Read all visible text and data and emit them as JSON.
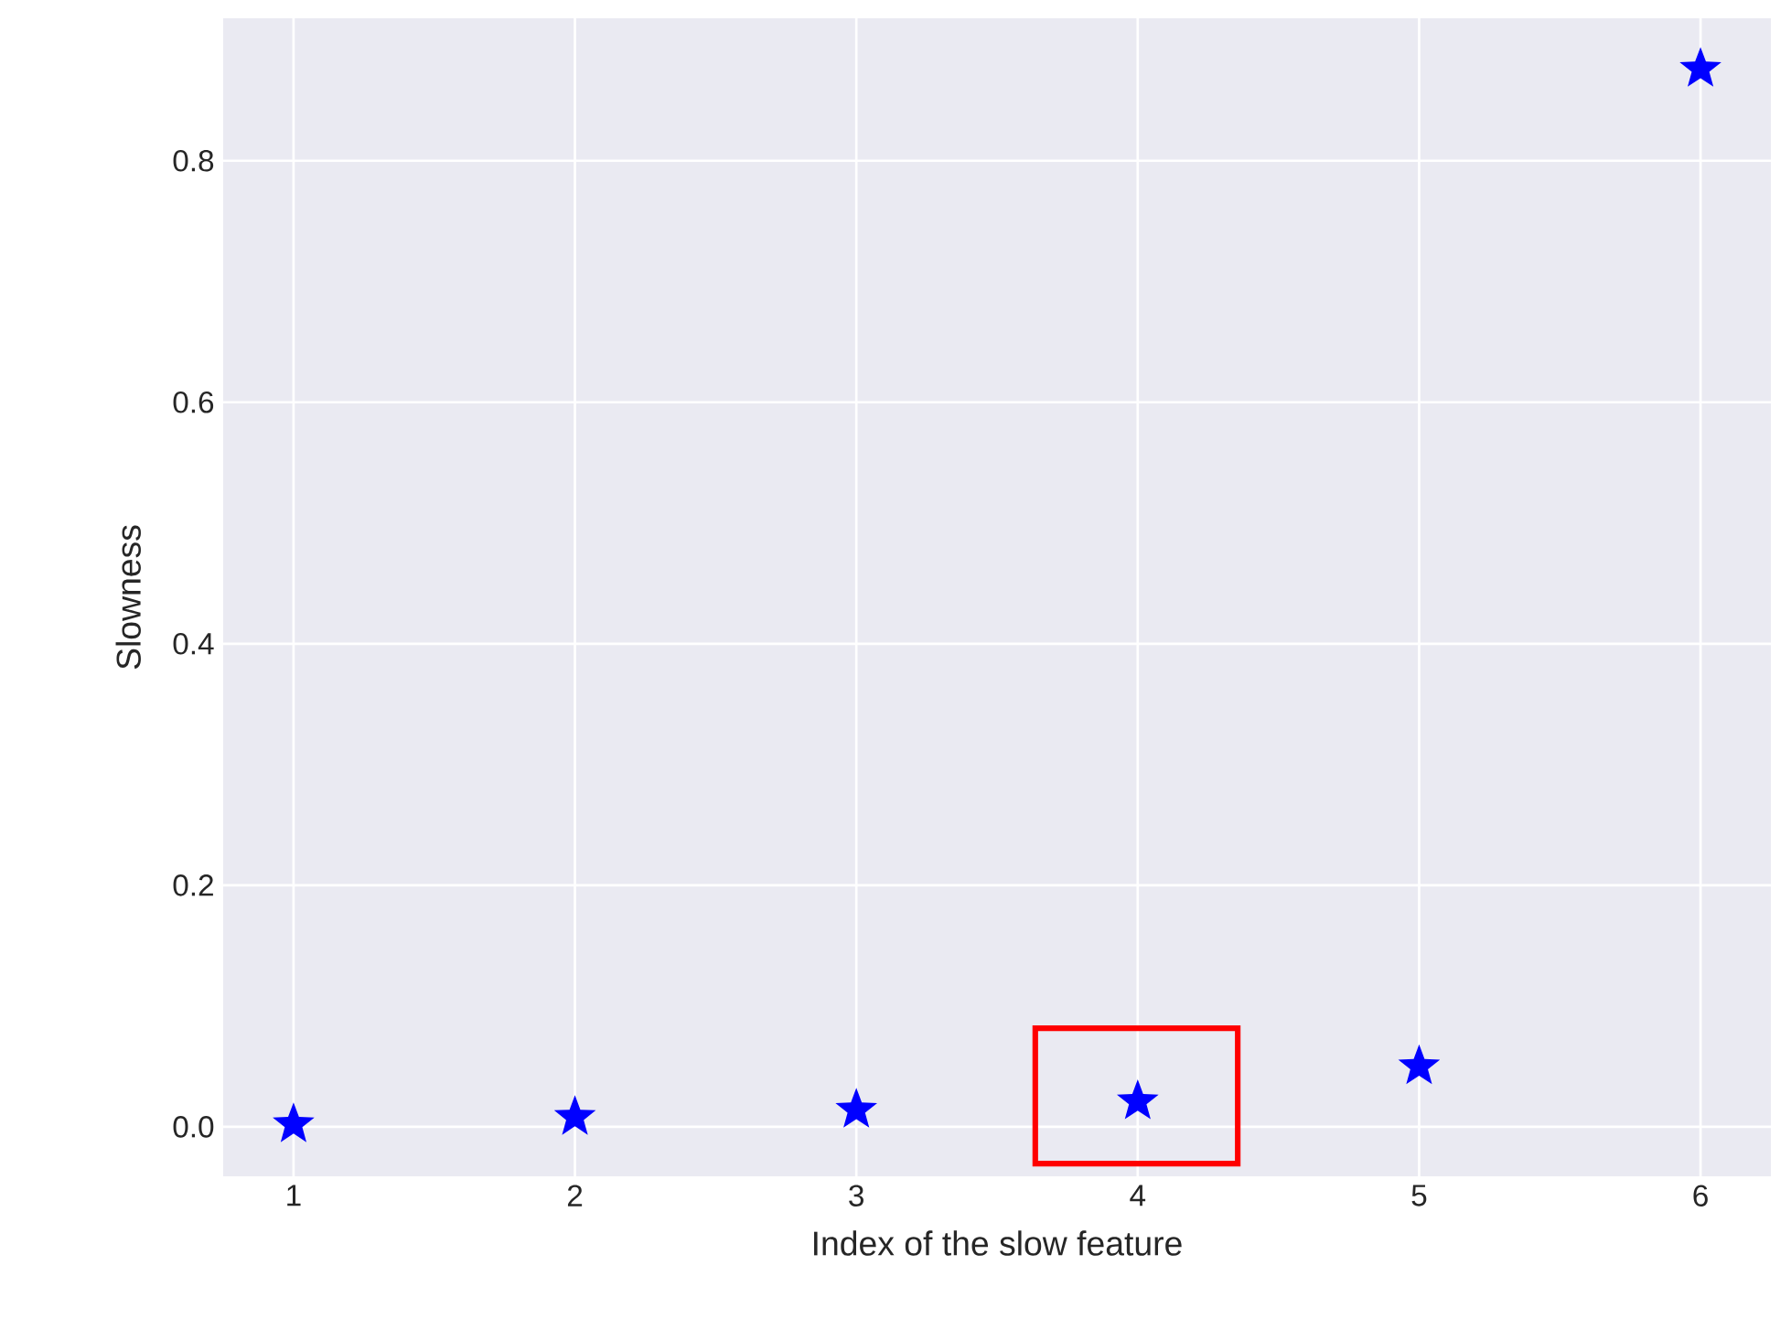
{
  "chart_data": {
    "type": "scatter",
    "xlabel": "Index of the slow feature",
    "ylabel": "Slowness",
    "x": [
      1,
      2,
      3,
      4,
      5,
      6
    ],
    "values": [
      0.002,
      0.008,
      0.014,
      0.021,
      0.05,
      0.876
    ],
    "color": "#0000ff",
    "marker": "star",
    "grid": true,
    "xlim": [
      0.75,
      6.25
    ],
    "ylim": [
      -0.041,
      0.918
    ],
    "xticks": [
      1,
      2,
      3,
      4,
      5,
      6
    ],
    "yticks": [
      {
        "value": 0,
        "label": "0.0"
      },
      0.2,
      0.4,
      0.6,
      0.8
    ]
  }
}
